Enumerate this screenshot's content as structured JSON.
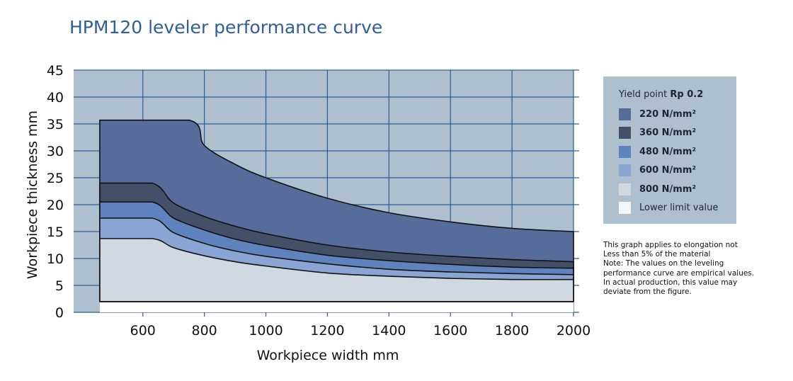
{
  "chart_data": {
    "type": "area",
    "title": "HPM120 leveler performance curve",
    "xlabel": "Workpiece width mm",
    "ylabel": "Workpiece thickness mm",
    "xlim": [
      375,
      2000
    ],
    "ylim": [
      0,
      45
    ],
    "xticks": [
      600,
      800,
      1000,
      1200,
      1400,
      1600,
      1800,
      2000
    ],
    "yticks": [
      0,
      5,
      10,
      15,
      20,
      25,
      30,
      35,
      40,
      45
    ],
    "grid": true,
    "lower_limit_thickness": 2,
    "legend_position": "right",
    "legend_title_prefix": "Yield point ",
    "legend_title_bold": "Rp 0.2",
    "series": [
      {
        "name": "220 N/mm²",
        "color": "#566c9a",
        "x": [
          460,
          750,
          800,
          900,
          1000,
          1200,
          1400,
          1600,
          1800,
          2000
        ],
        "y": [
          35.7,
          35.7,
          31.0,
          27.5,
          25.0,
          21.2,
          18.5,
          16.8,
          15.6,
          15.0
        ]
      },
      {
        "name": "360 N/mm²",
        "color": "#444f68",
        "x": [
          460,
          630,
          700,
          800,
          900,
          1000,
          1200,
          1400,
          1600,
          1800,
          2000
        ],
        "y": [
          24.0,
          24.0,
          20.3,
          17.8,
          16.0,
          14.6,
          12.5,
          11.2,
          10.4,
          9.8,
          9.4
        ]
      },
      {
        "name": "480 N/mm²",
        "color": "#5f83bf",
        "x": [
          460,
          630,
          700,
          800,
          900,
          1000,
          1200,
          1400,
          1600,
          1800,
          2000
        ],
        "y": [
          20.5,
          20.5,
          17.5,
          15.3,
          13.6,
          12.4,
          10.6,
          9.6,
          8.9,
          8.4,
          8.2
        ]
      },
      {
        "name": "600 N/mm²",
        "color": "#8aa4d3",
        "x": [
          460,
          630,
          700,
          800,
          900,
          1000,
          1200,
          1400,
          1600,
          1800,
          2000
        ],
        "y": [
          17.5,
          17.5,
          14.8,
          12.8,
          11.4,
          10.4,
          9.0,
          8.0,
          7.5,
          7.2,
          7.0
        ]
      },
      {
        "name": "800 N/mm²",
        "color": "#d0d9e2",
        "x": [
          460,
          630,
          700,
          800,
          900,
          1000,
          1200,
          1400,
          1600,
          1800,
          2000
        ],
        "y": [
          13.7,
          13.7,
          12.0,
          10.5,
          9.4,
          8.6,
          7.3,
          6.7,
          6.3,
          6.1,
          6.1
        ]
      },
      {
        "name": "Lower limit value",
        "color": "#f4f6f8"
      }
    ]
  },
  "colors": {
    "plot_background": "#aebfce",
    "grid": "#2d5d96",
    "title": "#2f5f9a",
    "outline": "#111111"
  },
  "note": [
    "This graph applies to elongation not",
    "Less than 5% of the material",
    "Note: The values on the leveling",
    "performance curve are empirical values.",
    "In actual production, this value may",
    "deviate from the figure."
  ]
}
